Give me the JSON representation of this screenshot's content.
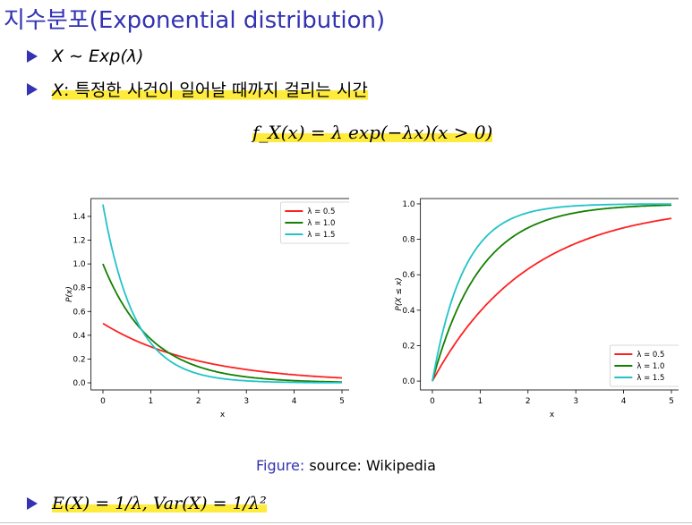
{
  "title": "지수분포(Exponential distribution)",
  "bullets": {
    "b1": {
      "text": "X ∼ Exp(λ)"
    },
    "b2": {
      "var": "X",
      "rest": ": 특정한 사건이 일어날 때까지 걸리는 시간"
    },
    "b3": {
      "text": "E(X) = 1/λ, Var(X) = 1/λ²"
    }
  },
  "formula": "f_X(x) = λ exp(−λx)(x > 0)",
  "caption": {
    "label": "Figure:",
    "text": " source: Wikipedia"
  },
  "colors": {
    "accent": "#3333b3",
    "highlight": "#ffeb3b",
    "red": "#ff2020",
    "green": "#138000",
    "cyan": "#22c3c8"
  },
  "chart_data": [
    {
      "type": "line",
      "xlabel": "x",
      "ylabel": "P(x)",
      "xlim": [
        0,
        5
      ],
      "ylim": [
        -0.06,
        1.55
      ],
      "xticks": [
        "0",
        "1",
        "2",
        "3",
        "4",
        "5"
      ],
      "yticks": [
        "0.0",
        "0.2",
        "0.4",
        "0.6",
        "0.8",
        "1.0",
        "1.2",
        "1.4"
      ],
      "legend_position": "top-right",
      "function": "pdf",
      "series": [
        {
          "name": "λ = 0.5",
          "lambda": 0.5,
          "color": "#ff2020"
        },
        {
          "name": "λ = 1.0",
          "lambda": 1.0,
          "color": "#138000"
        },
        {
          "name": "λ = 1.5",
          "lambda": 1.5,
          "color": "#22c3c8"
        }
      ]
    },
    {
      "type": "line",
      "xlabel": "x",
      "ylabel": "P(X ≤ x)",
      "xlim": [
        0,
        5
      ],
      "ylim": [
        -0.05,
        1.03
      ],
      "xticks": [
        "0",
        "1",
        "2",
        "3",
        "4",
        "5"
      ],
      "yticks": [
        "0.0",
        "0.2",
        "0.4",
        "0.6",
        "0.8",
        "1.0"
      ],
      "legend_position": "bottom-right",
      "function": "cdf",
      "series": [
        {
          "name": "λ = 0.5",
          "lambda": 0.5,
          "color": "#ff2020"
        },
        {
          "name": "λ = 1.0",
          "lambda": 1.0,
          "color": "#138000"
        },
        {
          "name": "λ = 1.5",
          "lambda": 1.5,
          "color": "#22c3c8"
        }
      ]
    }
  ]
}
